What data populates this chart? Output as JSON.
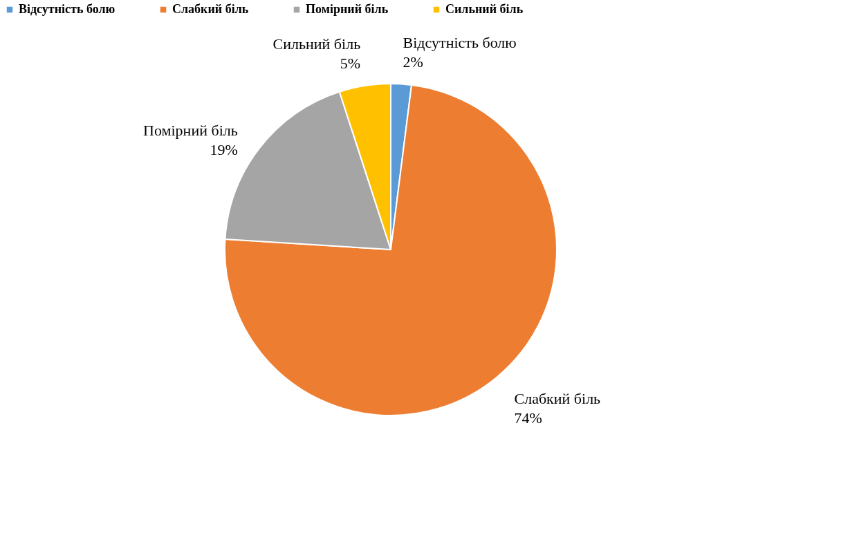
{
  "chart_data": {
    "type": "pie",
    "categories": [
      "Відсутність болю",
      "Слабкий біль",
      "Помірний біль",
      "Сильний біль"
    ],
    "values": [
      2,
      74,
      19,
      5
    ],
    "colors": [
      "#5b9bd5",
      "#ed7d31",
      "#a5a5a5",
      "#ffc000"
    ],
    "value_labels": [
      "2%",
      "74%",
      "19%",
      "5%"
    ],
    "legend": "top"
  }
}
